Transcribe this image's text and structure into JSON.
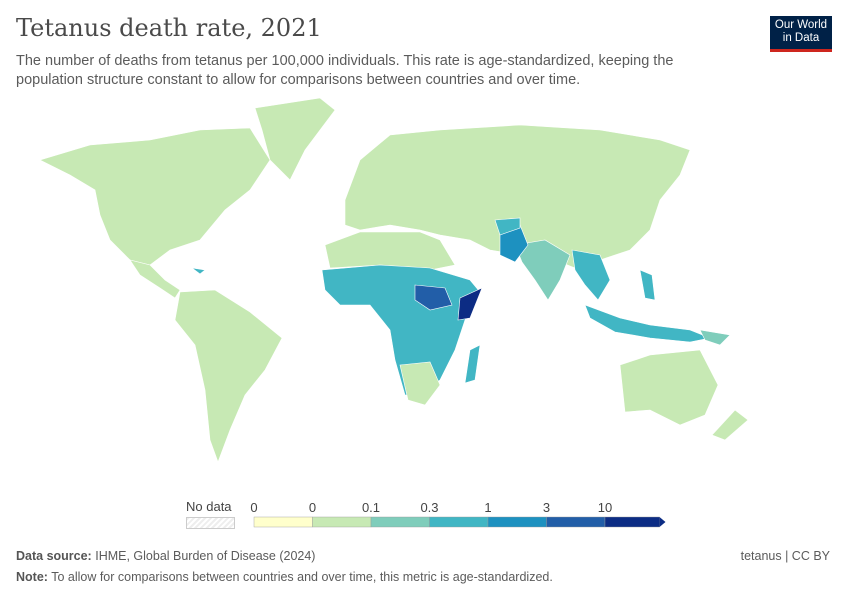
{
  "header": {
    "title": "Tetanus death rate, 2021",
    "subtitle": "The number of deaths from tetanus per 100,000 individuals. This rate is age-standardized, keeping the population structure constant to allow for comparisons between countries and over time.",
    "logo_line1": "Our World",
    "logo_line2": "in Data"
  },
  "legend": {
    "no_data_label": "No data",
    "bins": [
      {
        "label": "0",
        "color": "#ffffcc"
      },
      {
        "label": "0",
        "color": "#c7e9b4"
      },
      {
        "label": "0.1",
        "color": "#7fcdbb"
      },
      {
        "label": "0.3",
        "color": "#41b6c4"
      },
      {
        "label": "1",
        "color": "#1d91c0"
      },
      {
        "label": "3",
        "color": "#225ea8"
      },
      {
        "label": "10",
        "color": "#0c2c84"
      }
    ]
  },
  "footer": {
    "source_label": "Data source:",
    "source": "IHME, Global Burden of Disease (2024)",
    "note_label": "Note:",
    "note": "To allow for comparisons between countries and over time, this metric is age-standardized.",
    "license": "tetanus | CC BY"
  }
}
